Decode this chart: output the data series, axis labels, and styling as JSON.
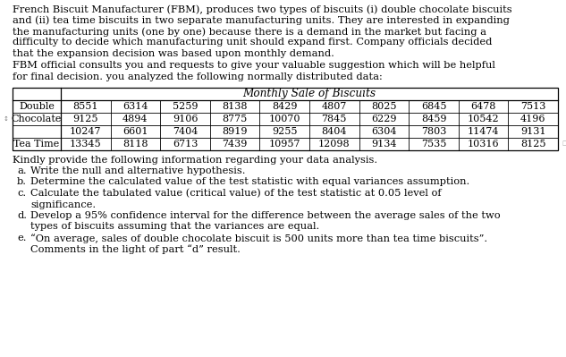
{
  "paragraph1_lines": [
    "French Biscuit Manufacturer (FBM), produces two types of biscuits (i) double chocolate biscuits",
    "and (ii) tea time biscuits in two separate manufacturing units. They are interested in expanding",
    "the manufacturing units (one by one) because there is a demand in the market but facing a",
    "difficulty to decide which manufacturing unit should expand first. Company officials decided",
    "that the expansion decision was based upon monthly demand."
  ],
  "paragraph2_lines": [
    "FBM official consults you and requests to give your valuable suggestion which will be helpful",
    "for final decision. you analyzed the following normally distributed data:"
  ],
  "table_header": "Monthly Sale of Biscuits",
  "row_labels": [
    "Double",
    "Chocolate",
    "",
    "Tea Time"
  ],
  "table_data": [
    [
      8551,
      6314,
      5259,
      8138,
      8429,
      4807,
      8025,
      6845,
      6478,
      7513
    ],
    [
      9125,
      4894,
      9106,
      8775,
      10070,
      7845,
      6229,
      8459,
      10542,
      4196
    ],
    [
      10247,
      6601,
      7404,
      8919,
      9255,
      8404,
      6304,
      7803,
      11474,
      9131
    ],
    [
      13345,
      8118,
      6713,
      7439,
      10957,
      12098,
      9134,
      7535,
      10316,
      8125
    ]
  ],
  "questions_header": "Kindly provide the following information regarding your data analysis.",
  "questions": [
    {
      "label": "a.",
      "lines": [
        "Write the null and alternative hypothesis."
      ]
    },
    {
      "label": "b.",
      "lines": [
        "Determine the calculated value of the test statistic with equal variances assumption."
      ]
    },
    {
      "label": "c.",
      "lines": [
        "Calculate the tabulated value (critical value) of the test statistic at 0.05 level of",
        "significance."
      ]
    },
    {
      "label": "d.",
      "lines": [
        "Develop a 95% confidence interval for the difference between the average sales of the two",
        "types of biscuits assuming that the variances are equal."
      ]
    },
    {
      "label": "e.",
      "lines": [
        "“On average, sales of double chocolate biscuit is 500 units more than tea time biscuits”.",
        "Comments in the light of part “d” result."
      ]
    }
  ],
  "bg_color": "#ffffff",
  "text_color": "#000000",
  "font_name": "DejaVu Serif",
  "font_size": 8.2,
  "table_font_size": 8.0,
  "q_header_fontsize": 8.2,
  "q_fontsize": 8.2
}
